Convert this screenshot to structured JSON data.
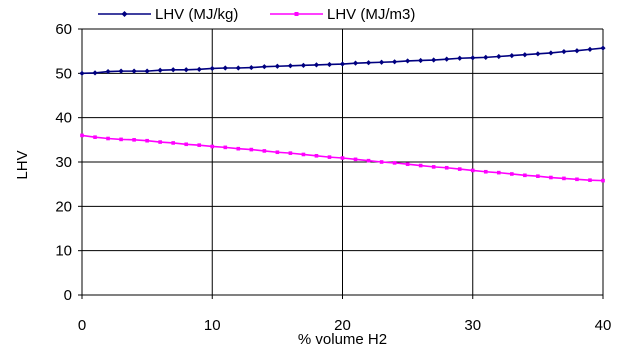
{
  "chart_data": {
    "type": "line",
    "title": "",
    "xlabel": "% volume H2",
    "ylabel": "LHV",
    "xlim": [
      0,
      40
    ],
    "ylim": [
      0,
      60
    ],
    "x_ticks": [
      "0",
      "10",
      "20",
      "30",
      "40"
    ],
    "y_ticks": [
      "0",
      "10",
      "20",
      "30",
      "40",
      "50",
      "60"
    ],
    "grid": true,
    "legend_position": "top",
    "x": [
      0,
      1,
      2,
      3,
      4,
      5,
      6,
      7,
      8,
      9,
      10,
      11,
      12,
      13,
      14,
      15,
      16,
      17,
      18,
      19,
      20,
      21,
      22,
      23,
      24,
      25,
      26,
      27,
      28,
      29,
      30,
      31,
      32,
      33,
      34,
      35,
      36,
      37,
      38,
      39,
      40
    ],
    "series": [
      {
        "name": "LHV (MJ/kg)",
        "color": "#000080",
        "marker": "diamond",
        "values": [
          50.0,
          50.1,
          50.4,
          50.5,
          50.5,
          50.5,
          50.7,
          50.8,
          50.8,
          50.9,
          51.1,
          51.2,
          51.2,
          51.3,
          51.5,
          51.6,
          51.7,
          51.8,
          51.9,
          52.0,
          52.1,
          52.3,
          52.4,
          52.5,
          52.6,
          52.8,
          52.9,
          53.0,
          53.2,
          53.4,
          53.5,
          53.6,
          53.8,
          54.0,
          54.2,
          54.4,
          54.6,
          54.9,
          55.1,
          55.4,
          55.7
        ]
      },
      {
        "name": "LHV (MJ/m3)",
        "color": "#ff00ff",
        "marker": "square",
        "values": [
          36.0,
          35.6,
          35.3,
          35.1,
          35.0,
          34.8,
          34.5,
          34.3,
          34.0,
          33.8,
          33.5,
          33.3,
          33.0,
          32.8,
          32.5,
          32.2,
          32.0,
          31.7,
          31.4,
          31.1,
          30.9,
          30.6,
          30.3,
          30.0,
          29.8,
          29.5,
          29.2,
          28.9,
          28.7,
          28.4,
          28.1,
          27.8,
          27.6,
          27.3,
          27.0,
          26.8,
          26.5,
          26.3,
          26.1,
          25.9,
          25.8
        ]
      }
    ]
  }
}
